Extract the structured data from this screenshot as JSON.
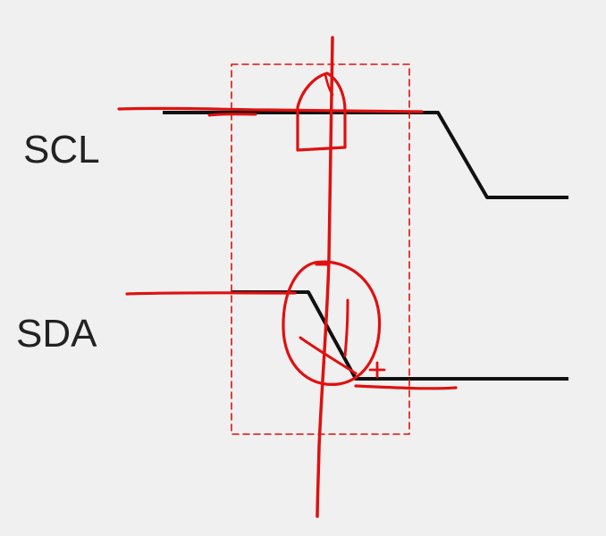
{
  "signals": {
    "scl": {
      "label": "SCL"
    },
    "sda": {
      "label": "SDA"
    }
  },
  "colors": {
    "background": "#f0f0f0",
    "waveform": "#111111",
    "annotation": "#e01010",
    "label": "#222222"
  }
}
